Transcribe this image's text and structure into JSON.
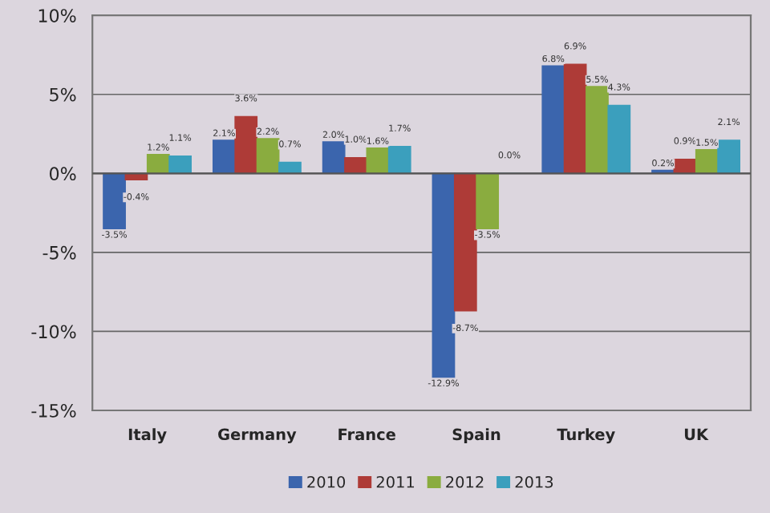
{
  "chart_data": {
    "type": "bar",
    "categories": [
      "Italy",
      "Germany",
      "France",
      "Spain",
      "Turkey",
      "UK"
    ],
    "series": [
      {
        "name": "2010",
        "color": "#3b65ad",
        "values": [
          -3.5,
          2.1,
          2.0,
          -12.9,
          6.8,
          0.2
        ],
        "value_labels": [
          "-3.5%",
          "2.1%",
          "2.0%",
          "-12.9%",
          "6.8%",
          "0.2%"
        ]
      },
      {
        "name": "2011",
        "color": "#ae3b37",
        "values": [
          -0.4,
          3.6,
          1.0,
          -8.7,
          6.9,
          0.9
        ],
        "value_labels": [
          "-0.4%",
          "3.6%",
          "1.0%",
          "-8.7%",
          "6.9%",
          "0.9%"
        ]
      },
      {
        "name": "2012",
        "color": "#8aac3f",
        "values": [
          1.2,
          2.2,
          1.6,
          -3.5,
          5.5,
          1.5
        ],
        "value_labels": [
          "1.2%",
          "2.2%",
          "1.6%",
          "-3.5%",
          "5.5%",
          "1.5%"
        ]
      },
      {
        "name": "2013",
        "color": "#3b9fbd",
        "values": [
          1.1,
          0.7,
          1.7,
          0.0,
          4.3,
          2.1
        ],
        "value_labels": [
          "1.1%",
          "0.7%",
          "1.7%",
          "0.0%",
          "4.3%",
          "2.1%"
        ]
      }
    ],
    "ylim": [
      -15,
      10
    ],
    "yticks": [
      {
        "value": -15,
        "label": "-15%"
      },
      {
        "value": -10,
        "label": "-10%"
      },
      {
        "value": -5,
        "label": "-5%"
      },
      {
        "value": 0,
        "label": "0%"
      },
      {
        "value": 5,
        "label": "5%"
      },
      {
        "value": 10,
        "label": "10%"
      }
    ],
    "grid": "y",
    "legend": "bottom"
  }
}
